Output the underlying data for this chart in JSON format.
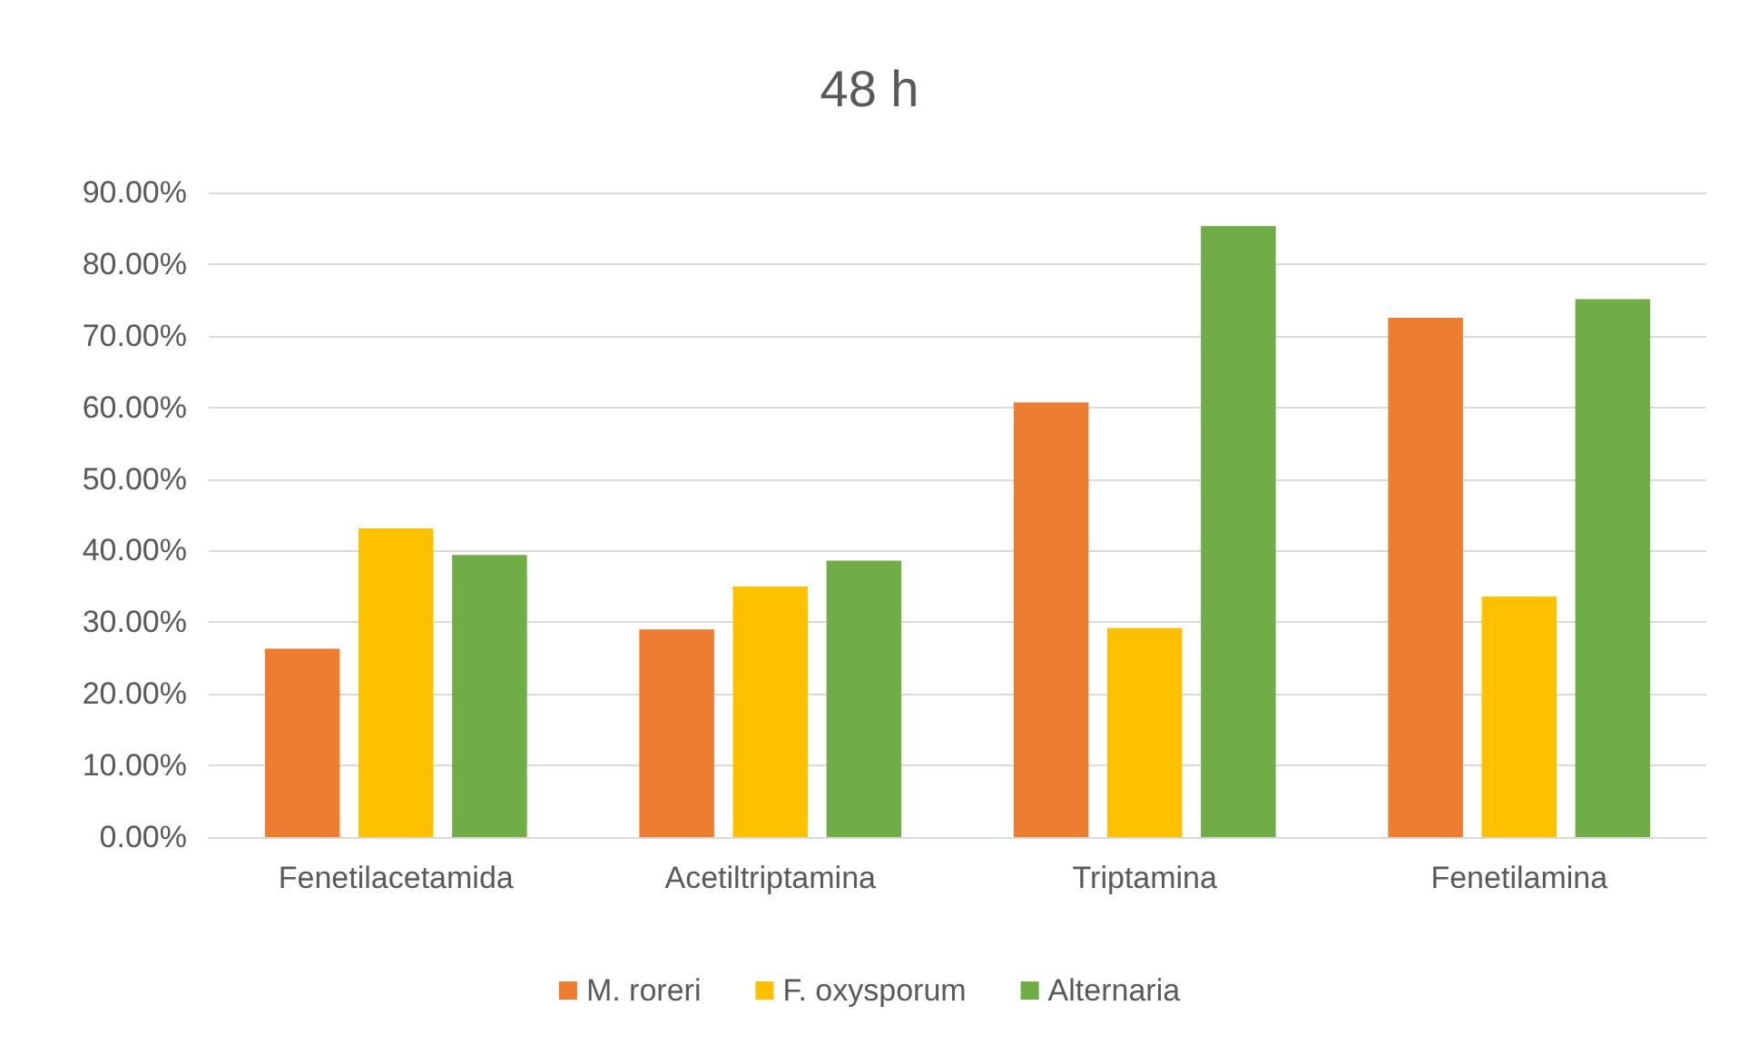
{
  "chart_data": {
    "type": "bar",
    "title": "48 h",
    "categories": [
      "Fenetilacetamida",
      "Acetiltriptamina",
      "Triptamina",
      "Fenetilamina"
    ],
    "series": [
      {
        "name": "M. roreri",
        "color": "#ed7d31",
        "values": [
          26.3,
          29,
          60.7,
          72.5
        ]
      },
      {
        "name": "F. oxysporum",
        "color": "#ffc000",
        "values": [
          43.1,
          35,
          29.2,
          33.6
        ]
      },
      {
        "name": "Alternaria",
        "color": "#70ad47",
        "values": [
          39.4,
          38.6,
          85.3,
          75.1
        ]
      }
    ],
    "ylim": [
      0,
      90
    ],
    "yticks": [
      {
        "value": 0,
        "label": "0.00%"
      },
      {
        "value": 10,
        "label": "10.00%"
      },
      {
        "value": 20,
        "label": "20.00%"
      },
      {
        "value": 30,
        "label": "30.00%"
      },
      {
        "value": 40,
        "label": "40.00%"
      },
      {
        "value": 50,
        "label": "50.00%"
      },
      {
        "value": 60,
        "label": "60.00%"
      },
      {
        "value": 70,
        "label": "70.00%"
      },
      {
        "value": 80,
        "label": "80.00%"
      },
      {
        "value": 90,
        "label": "90.00%"
      }
    ],
    "grid": "y",
    "legend": "bottom"
  }
}
